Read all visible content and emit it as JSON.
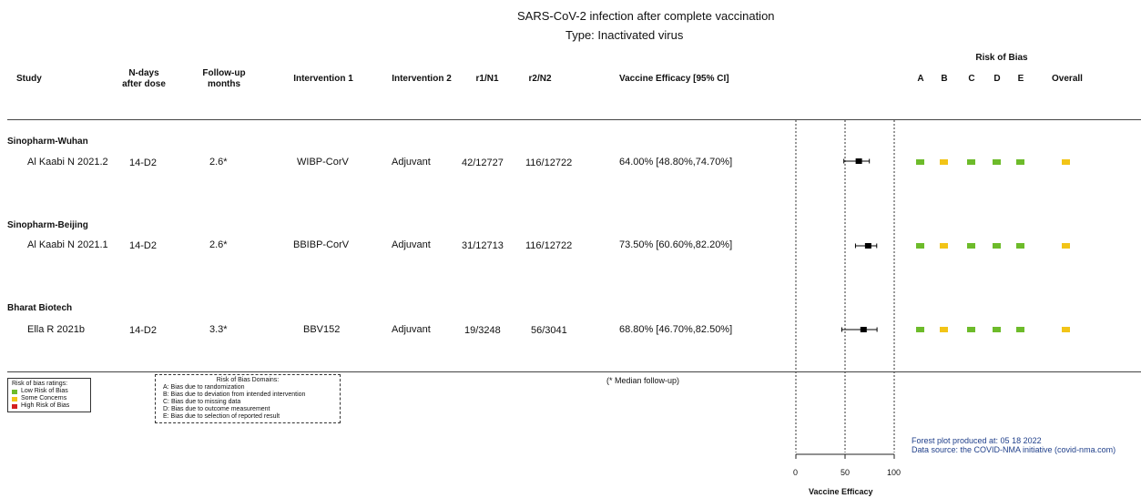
{
  "title": "SARS-CoV-2 infection after complete vaccination",
  "subtitle": "Type: Inactivated virus",
  "columns": {
    "study": "Study",
    "ndays": [
      "N-days",
      "after dose"
    ],
    "followup": [
      "Follow-up",
      "months"
    ],
    "int1": "Intervention 1",
    "int2": "Intervention 2",
    "r1n1": "r1/N1",
    "r2n2": "r2/N2",
    "ve": "Vaccine Efficacy [95% CI]",
    "rob_title": "Risk of Bias",
    "rob_cols": [
      "A",
      "B",
      "C",
      "D",
      "E",
      "Overall"
    ]
  },
  "colors": {
    "low": "#6dbb2a",
    "some": "#f2c417",
    "high": "#d41f1f"
  },
  "groups": [
    {
      "name": "Sinopharm-Wuhan",
      "studies": [
        {
          "study": "Al Kaabi N 2021.2",
          "ndays": "14-D2",
          "followup": "2.6*",
          "int1": "WIBP-CorV",
          "int2": "Adjuvant",
          "r1n1": "42/12727",
          "r2n2": "116/12722",
          "ve": "64.00% [48.80%,74.70%]",
          "rob": [
            "low",
            "some",
            "low",
            "low",
            "low",
            "some"
          ]
        }
      ]
    },
    {
      "name": "Sinopharm-Beijing",
      "studies": [
        {
          "study": "Al Kaabi N 2021.1",
          "ndays": "14-D2",
          "followup": "2.6*",
          "int1": "BBIBP-CorV",
          "int2": "Adjuvant",
          "r1n1": "31/12713",
          "r2n2": "116/12722",
          "ve": "73.50% [60.60%,82.20%]",
          "rob": [
            "low",
            "some",
            "low",
            "low",
            "low",
            "some"
          ]
        }
      ]
    },
    {
      "name": "Bharat Biotech",
      "studies": [
        {
          "study": "Ella R 2021b",
          "ndays": "14-D2",
          "followup": "3.3*",
          "int1": "BBV152",
          "int2": "Adjuvant",
          "r1n1": "19/3248",
          "r2n2": "56/3041",
          "ve": "68.80% [46.70%,82.50%]",
          "rob": [
            "low",
            "some",
            "low",
            "low",
            "low",
            "some"
          ]
        }
      ]
    }
  ],
  "legend_ratings": {
    "title": "Risk of bias ratings:",
    "items": [
      {
        "label": "Low Risk of Bias",
        "level": "low"
      },
      {
        "label": "Some Concerns",
        "level": "some"
      },
      {
        "label": "High Risk of Bias",
        "level": "high"
      }
    ]
  },
  "legend_domains": {
    "title": "Risk of Bias Domains:",
    "items": [
      "A: Bias due to randomization",
      "B: Bias due to deviation from intended intervention",
      "C: Bias due to missing data",
      "D: Bias due to outcome measurement",
      "E: Bias due to selection of reported result"
    ]
  },
  "median_note": "(* Median follow-up)",
  "footer": {
    "produced": "Forest plot produced at: 05 18 2022",
    "source": "Data source: the COVID-NMA initiative (covid-nma.com)"
  },
  "chart_data": {
    "type": "forest",
    "xlabel": "Vaccine Efficacy",
    "xlim": [
      0,
      100
    ],
    "xticks": [
      0,
      50,
      100
    ],
    "reference_lines": [
      0,
      50,
      100
    ],
    "points": [
      {
        "study": "Al Kaabi N 2021.2",
        "estimate": 64.0,
        "lower": 48.8,
        "upper": 74.7
      },
      {
        "study": "Al Kaabi N 2021.1",
        "estimate": 73.5,
        "lower": 60.6,
        "upper": 82.2
      },
      {
        "study": "Ella R 2021b",
        "estimate": 68.8,
        "lower": 46.7,
        "upper": 82.5
      }
    ]
  }
}
